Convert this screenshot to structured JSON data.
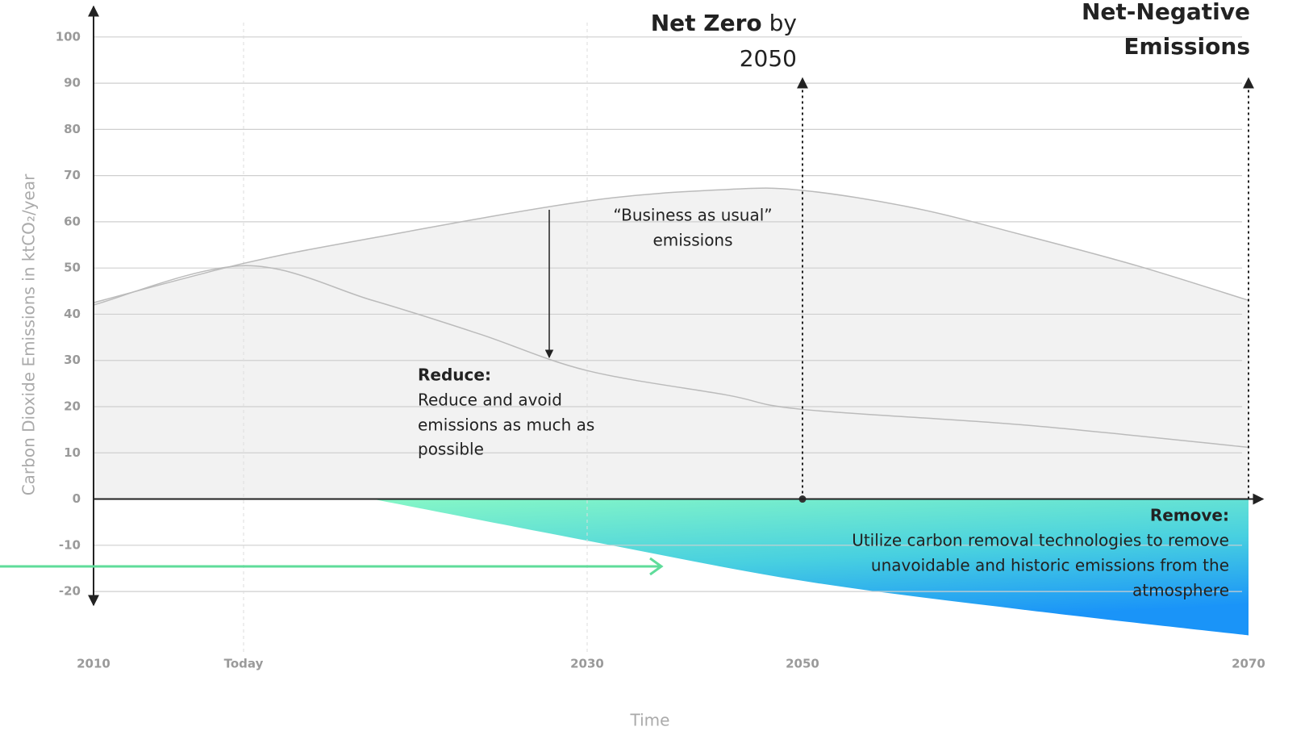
{
  "chart_data": {
    "type": "area",
    "y_axis_label": "Carbon Dioxide Emissions in ktCO₂/year",
    "x_axis_label": "Time",
    "xlim": [
      2010,
      2070
    ],
    "xticks": [
      2010,
      {
        "value": 2014,
        "label": "Today"
      },
      2030,
      2050,
      2070
    ],
    "ylim": [
      -24,
      108
    ],
    "yticks": [
      100,
      90,
      80,
      70,
      60,
      50,
      40,
      30,
      20,
      10,
      0,
      -10,
      -20
    ],
    "grid": true,
    "series": [
      {
        "color": "#bbbbbb",
        "fill": "#f2f2f2",
        "x": [
          2010,
          2014,
          2020,
          2030,
          2043,
          2050,
          2055,
          2060,
          2065,
          2070
        ],
        "values": [
          42.5,
          51,
          56.5,
          64.5,
          67,
          66.8,
          63,
          57,
          50.5,
          43
        ]
      },
      {
        "color": "#bbbbbb",
        "x": [
          2010,
          2014,
          2020,
          2025,
          2030,
          2043,
          2050,
          2060,
          2070
        ],
        "values": [
          42,
          50.5,
          43,
          35.7,
          27.8,
          22.5,
          19.4,
          16,
          11.2
        ]
      },
      {
        "color": "#33c4e6",
        "fill": "gradient",
        "x": [
          2020,
          2030,
          2050,
          2060,
          2070
        ],
        "values": [
          0,
          -9,
          -17.7,
          -24,
          -29.5
        ]
      }
    ],
    "annotations": {
      "net_zero_bold": "Net Zero",
      "net_zero_rest": "by",
      "net_zero_year": "2050",
      "net_negative": [
        "Net-Negative",
        "Emissions"
      ],
      "business_as_usual": [
        "“Business as usual”",
        "emissions"
      ],
      "reduce_title": "Reduce:",
      "reduce_body": [
        "Reduce and avoid",
        "emissions as much as",
        "possible"
      ],
      "remove_title": "Remove:",
      "remove_body": [
        "Utilize carbon removal technologies to remove",
        "unavoidable and historic emissions from the",
        "atmosphere"
      ]
    }
  }
}
